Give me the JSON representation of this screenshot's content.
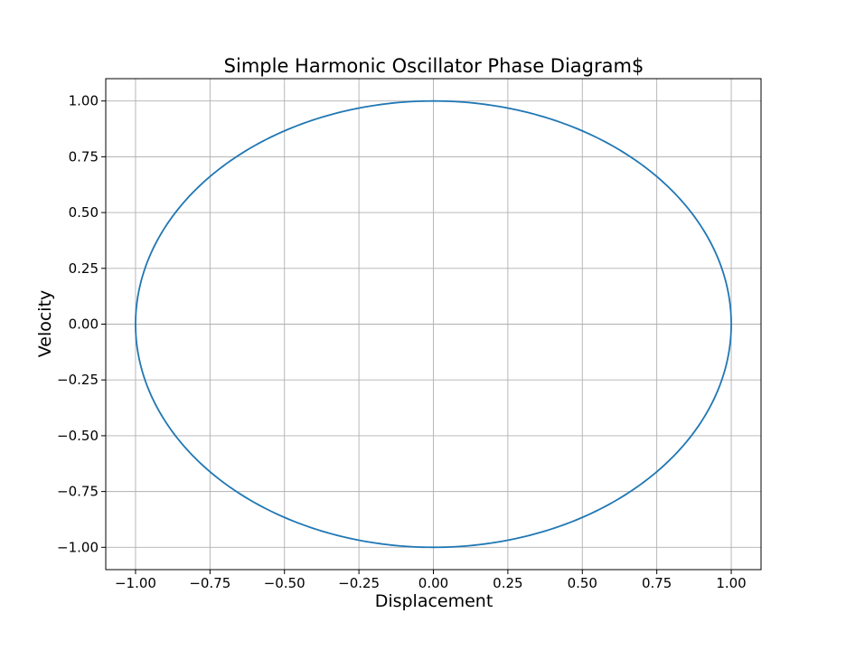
{
  "chart_data": {
    "type": "line",
    "title": "Simple Harmonic Oscillator Phase Diagram$",
    "xlabel": "Displacement",
    "ylabel": "Velocity",
    "xlim": [
      -1.1,
      1.1
    ],
    "ylim": [
      -1.1,
      1.1
    ],
    "xticks": [
      -1.0,
      -0.75,
      -0.5,
      -0.25,
      0.0,
      0.25,
      0.5,
      0.75,
      1.0
    ],
    "yticks": [
      -1.0,
      -0.75,
      -0.5,
      -0.25,
      0.0,
      0.25,
      0.5,
      0.75,
      1.0
    ],
    "xtick_labels": [
      "−1.00",
      "−0.75",
      "−0.50",
      "−0.25",
      "0.00",
      "0.25",
      "0.50",
      "0.75",
      "1.00"
    ],
    "ytick_labels": [
      "−1.00",
      "−0.75",
      "−0.50",
      "−0.25",
      "0.00",
      "0.25",
      "0.50",
      "0.75",
      "1.00"
    ],
    "grid": true,
    "legend": "none",
    "series": [
      {
        "color": "#1f77b4",
        "curve": "closed circle x^2 + v^2 = 1",
        "x": [
          1.0,
          0.966,
          0.866,
          0.707,
          0.5,
          0.259,
          0.0,
          -0.259,
          -0.5,
          -0.707,
          -0.866,
          -0.966,
          -1.0,
          -0.966,
          -0.866,
          -0.707,
          -0.5,
          -0.259,
          0.0,
          0.259,
          0.5,
          0.707,
          0.866,
          0.966,
          1.0
        ],
        "y": [
          0.0,
          0.259,
          0.5,
          0.707,
          0.866,
          0.966,
          1.0,
          0.966,
          0.866,
          0.707,
          0.5,
          0.259,
          0.0,
          -0.259,
          -0.5,
          -0.707,
          -0.866,
          -0.966,
          -1.0,
          -0.966,
          -0.866,
          -0.707,
          -0.5,
          -0.259,
          0.0
        ]
      }
    ]
  }
}
